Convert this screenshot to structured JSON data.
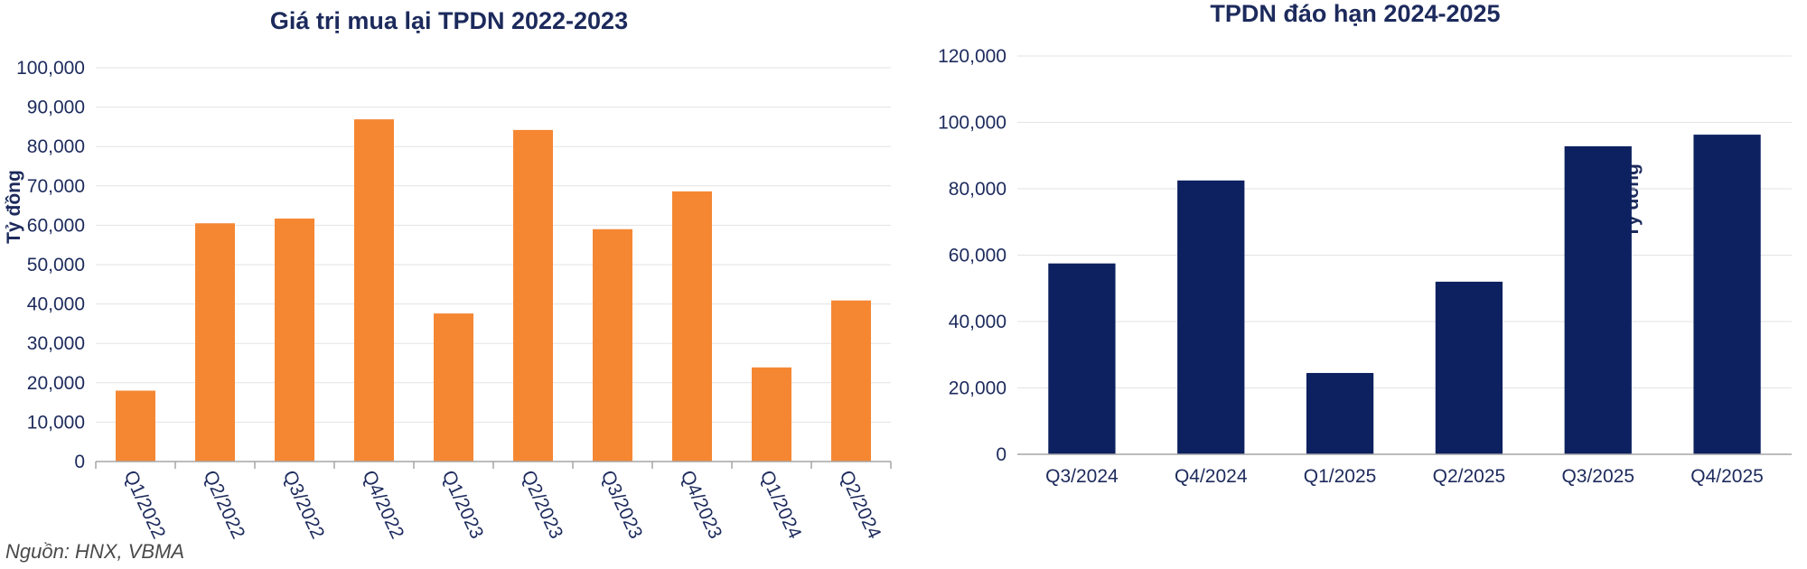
{
  "source_note": "Nguồn: HNX, VBMA",
  "chart_data": [
    {
      "type": "bar",
      "title": "Giá trị mua lại TPDN 2022-2023",
      "ylabel": "Tỷ đồng",
      "xlabel": "",
      "categories": [
        "Q1/2022",
        "Q2/2022",
        "Q3/2022",
        "Q4/2022",
        "Q1/2023",
        "Q2/2023",
        "Q3/2023",
        "Q4/2023",
        "Q1/2024",
        "Q2/2024"
      ],
      "values": [
        18000,
        60500,
        61700,
        86900,
        37600,
        84200,
        59000,
        68600,
        23900,
        40900
      ],
      "ylim": [
        0,
        100000
      ],
      "yticks": [
        "0",
        "10,000",
        "20,000",
        "30,000",
        "40,000",
        "50,000",
        "60,000",
        "70,000",
        "80,000",
        "90,000",
        "100,000"
      ],
      "grid": true,
      "bar_color": "#f58733"
    },
    {
      "type": "bar",
      "title": "TPDN đáo hạn 2024-2025",
      "ylabel": "Tỷ đồng",
      "xlabel": "",
      "categories": [
        "Q3/2024",
        "Q4/2024",
        "Q1/2025",
        "Q2/2025",
        "Q3/2025",
        "Q4/2025"
      ],
      "values": [
        57500,
        82500,
        24500,
        52000,
        92800,
        96300
      ],
      "ylim": [
        0,
        120000
      ],
      "yticks": [
        "0",
        "20,000",
        "40,000",
        "60,000",
        "80,000",
        "100,000",
        "120,000"
      ],
      "grid": true,
      "bar_color": "#0d2160"
    }
  ]
}
